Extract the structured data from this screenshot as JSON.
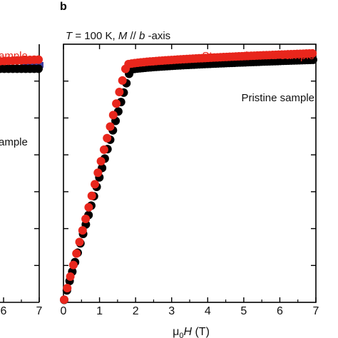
{
  "colors": {
    "pristine": "#000000",
    "stress_released": "#e8261c",
    "third_series": "#3f3fa0",
    "axis": "#000000"
  },
  "panels": {
    "a": {
      "partial_labels": {
        "red": "ample",
        "black": "ample"
      },
      "x_tick_labels": [
        "6",
        "7"
      ]
    },
    "b": {
      "letter": "b",
      "condition": {
        "prefix": "T",
        "part1": " = 100 K, ",
        "M": "M",
        "part2": " // ",
        "b": "b",
        "part3": " -axis"
      },
      "xlabel": {
        "mu": "μ",
        "sub": "0",
        "H": "H",
        "unit": " (T)"
      }
    }
  },
  "chart_data": {
    "type": "scatter",
    "xlim": [
      0,
      7
    ],
    "x_ticks": [
      0,
      1,
      2,
      3,
      4,
      5,
      6,
      7
    ],
    "y_ticks_unlabeled": 7,
    "grid": false,
    "series": [
      {
        "name": "Pristine sample",
        "color": "#000000",
        "saturation_field": 1.85,
        "saturation_level": 0.9,
        "high_field_level": 0.94
      },
      {
        "name": "Stress-released sample",
        "color": "#e8261c",
        "saturation_field": 1.75,
        "saturation_level": 0.92,
        "high_field_level": 0.965
      }
    ]
  }
}
